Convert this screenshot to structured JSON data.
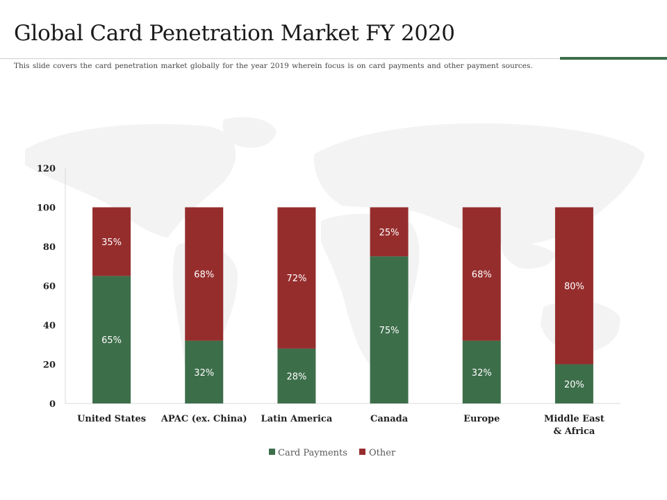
{
  "slide": {
    "title": "Global Card Penetration Market FY 2020",
    "subtitle": "This slide covers the card penetration  market globally for the year 2019 wherein focus is on card payments and other payment sources."
  },
  "colors": {
    "card_payments": "#3d6e4a",
    "other": "#962d2d",
    "accent": "#3d6e4a",
    "map": "#f3f3f3"
  },
  "chart_data": {
    "type": "bar",
    "stacked": true,
    "categories": [
      "United States",
      "APAC (ex. China)",
      "Latin America",
      "Canada",
      "Europe",
      "Middle East & Africa"
    ],
    "series": [
      {
        "name": "Card Payments",
        "values": [
          65,
          32,
          28,
          75,
          32,
          20
        ],
        "labels": [
          "65%",
          "32%",
          "28%",
          "75%",
          "32%",
          "20%"
        ]
      },
      {
        "name": "Other",
        "values": [
          35,
          68,
          72,
          25,
          68,
          80
        ],
        "labels": [
          "35%",
          "68%",
          "72%",
          "25%",
          "68%",
          "80%"
        ]
      }
    ],
    "ylim": [
      0,
      120
    ],
    "yticks": [
      0,
      20,
      40,
      60,
      80,
      100,
      120
    ],
    "grid": false,
    "legend": "bottom-center"
  }
}
